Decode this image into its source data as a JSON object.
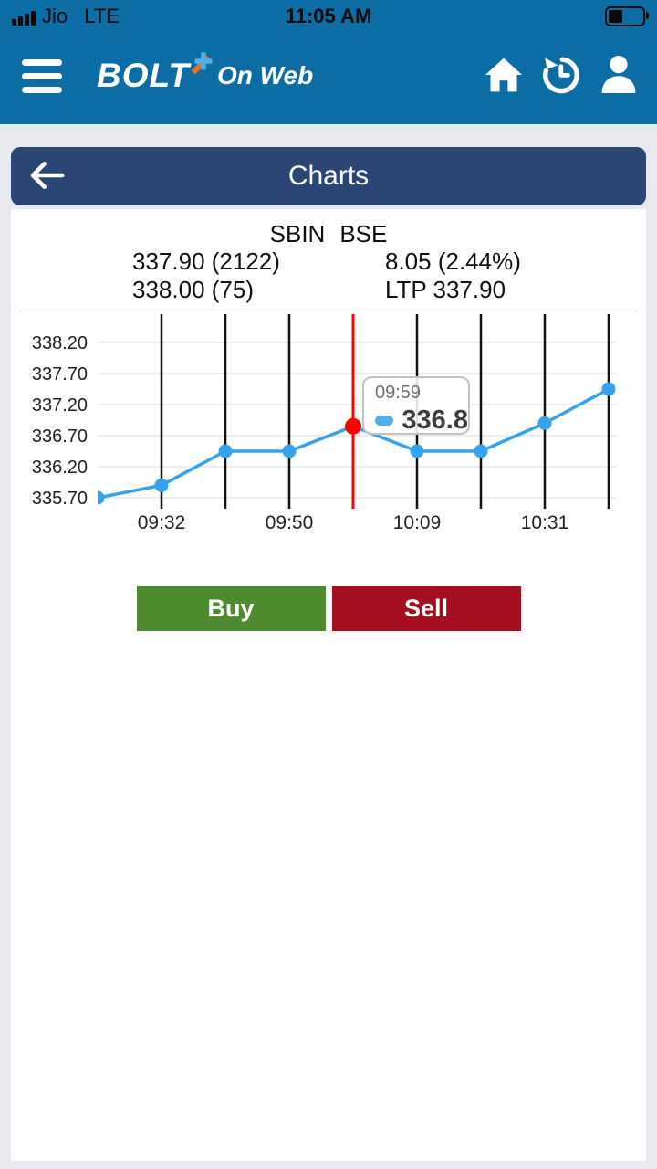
{
  "status_bar": {
    "carrier": "Jio",
    "network": "LTE",
    "time": "11:05 AM",
    "battery_fill_percent": 38,
    "icons": [
      "signal-bars-icon",
      "battery-icon"
    ]
  },
  "header": {
    "logo_primary": "BOLT",
    "logo_secondary": "On Web",
    "icons": [
      "menu-icon",
      "bolt-plus-icon",
      "home-icon",
      "history-icon",
      "profile-icon"
    ],
    "colors": {
      "bar_blue": "#0c6ca4",
      "logo_plus_orange": "#e8702a",
      "logo_plus_blue": "#4fb0e8"
    }
  },
  "nav": {
    "title": "Charts",
    "icons": [
      "back-arrow-icon"
    ],
    "color_navy": "#2a4674"
  },
  "stock": {
    "symbol": "SBIN",
    "exchange": "BSE",
    "row1_left": "337.90 (2122)",
    "row1_right": "8.05 (2.44%)",
    "row2_left": "338.00 (75)",
    "row2_right": "LTP 337.90"
  },
  "chart_data": {
    "type": "line",
    "title": "SBIN BSE intraday price",
    "series": [
      {
        "name": "LTP",
        "values": [
          335.7,
          335.9,
          336.45,
          336.45,
          336.85,
          336.45,
          336.45,
          336.9,
          337.45
        ]
      }
    ],
    "x_tick_labels": [
      "09:32",
      "09:50",
      "10:09",
      "10:31"
    ],
    "x_tick_indices": [
      1,
      3,
      5,
      7
    ],
    "y_ticks": [
      338.2,
      337.7,
      337.2,
      336.7,
      336.2,
      335.7
    ],
    "y_tick_labels": [
      "338.20",
      "337.70",
      "337.20",
      "336.70",
      "336.20",
      "335.70"
    ],
    "ylim": [
      335.45,
      338.45
    ],
    "grid": {
      "vertical": true,
      "horizontal": true
    },
    "selected_index": 4,
    "tooltip": {
      "title": "09:59",
      "value": "336.8"
    },
    "colors": {
      "line": "#36a2eb",
      "selected": "#ff0000",
      "vertical_grid": "#111111",
      "horizontal_grid": "#ededed",
      "axis_text": "#222222"
    }
  },
  "actions": {
    "buy_label": "Buy",
    "sell_label": "Sell",
    "buy_color": "#4e8b2f",
    "sell_color": "#a40e1e"
  }
}
